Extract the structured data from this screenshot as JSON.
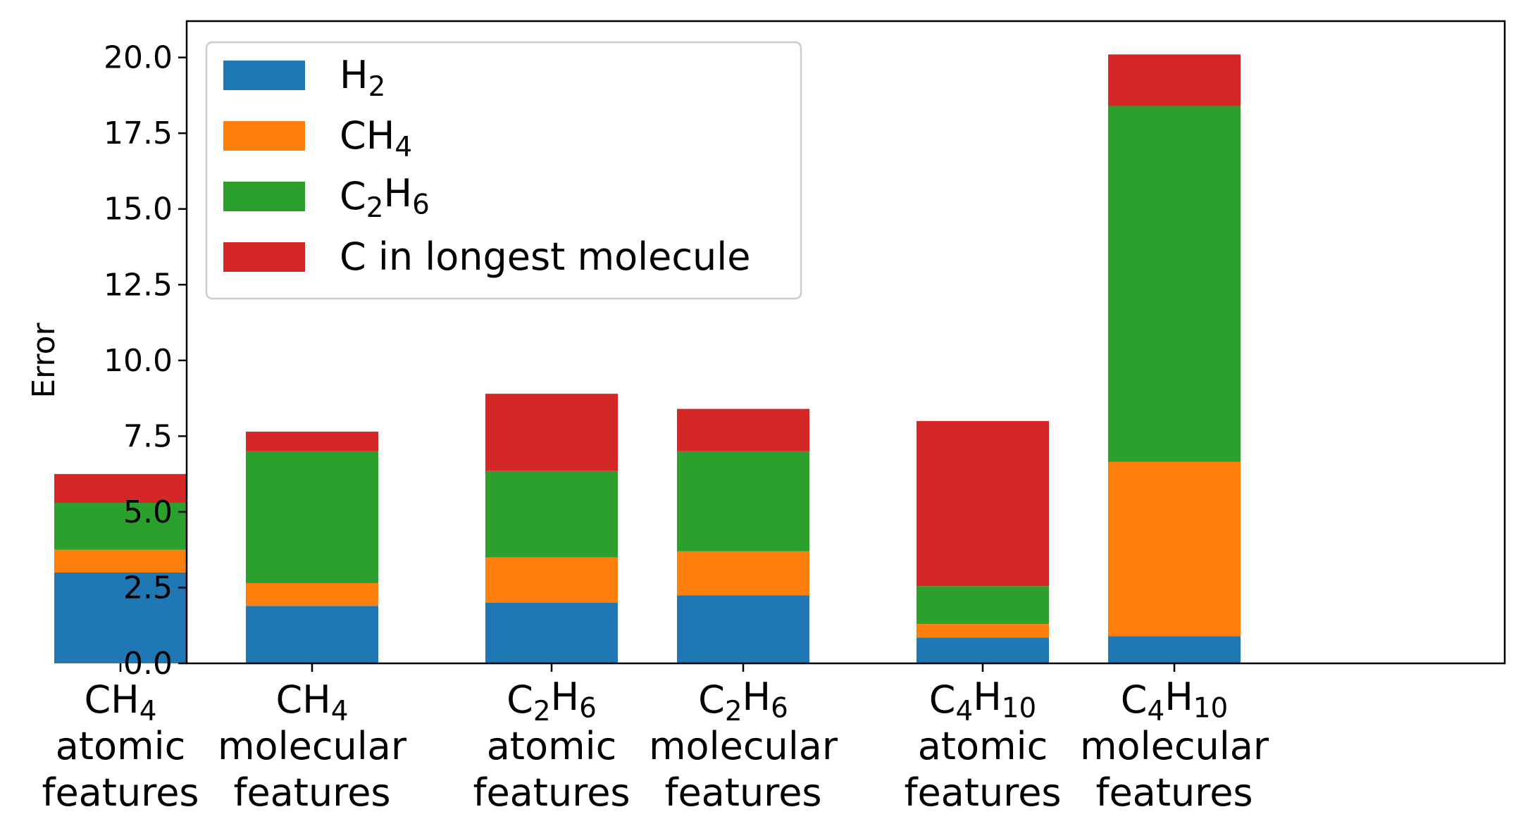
{
  "chart_data": {
    "type": "bar",
    "stacked": true,
    "ylabel": "Error",
    "xlabel": "",
    "title": "",
    "ylim": [
      0,
      21.2
    ],
    "yticks": [
      "0.0",
      "2.5",
      "5.0",
      "7.5",
      "10.0",
      "12.5",
      "15.0",
      "17.5",
      "20.0"
    ],
    "categories": [
      {
        "formula": [
          {
            "t": "CH"
          },
          {
            "t": "4",
            "sub": true
          }
        ],
        "line2": "atomic",
        "line3": "features"
      },
      {
        "formula": [
          {
            "t": "CH"
          },
          {
            "t": "4",
            "sub": true
          }
        ],
        "line2": "molecular",
        "line3": "features"
      },
      {
        "formula": [
          {
            "t": "C"
          },
          {
            "t": "2",
            "sub": true
          },
          {
            "t": "H"
          },
          {
            "t": "6",
            "sub": true
          }
        ],
        "line2": "atomic",
        "line3": "features"
      },
      {
        "formula": [
          {
            "t": "C"
          },
          {
            "t": "2",
            "sub": true
          },
          {
            "t": "H"
          },
          {
            "t": "6",
            "sub": true
          }
        ],
        "line2": "molecular",
        "line3": "features"
      },
      {
        "formula": [
          {
            "t": "C"
          },
          {
            "t": "4",
            "sub": true
          },
          {
            "t": "H"
          },
          {
            "t": "10",
            "sub": true
          }
        ],
        "line2": "atomic",
        "line3": "features"
      },
      {
        "formula": [
          {
            "t": "C"
          },
          {
            "t": "4",
            "sub": true
          },
          {
            "t": "H"
          },
          {
            "t": "10",
            "sub": true
          }
        ],
        "line2": "molecular",
        "line3": "features"
      }
    ],
    "series": [
      {
        "name": [
          {
            "t": "H"
          },
          {
            "t": "2",
            "sub": true
          }
        ],
        "color": "#1f77b4",
        "values": [
          3.0,
          1.9,
          2.0,
          2.25,
          0.85,
          0.9
        ]
      },
      {
        "name": [
          {
            "t": "CH"
          },
          {
            "t": "4",
            "sub": true
          }
        ],
        "color": "#ff7f0e",
        "values": [
          0.75,
          0.75,
          1.5,
          1.45,
          0.45,
          5.75
        ]
      },
      {
        "name": [
          {
            "t": "C"
          },
          {
            "t": "2",
            "sub": true
          },
          {
            "t": "H"
          },
          {
            "t": "6",
            "sub": true
          }
        ],
        "color": "#2ca02c",
        "values": [
          1.55,
          4.35,
          2.85,
          3.3,
          1.25,
          11.75
        ]
      },
      {
        "name": [
          {
            "t": "C in longest molecule"
          }
        ],
        "color": "#d62728",
        "values": [
          0.95,
          0.65,
          2.55,
          1.4,
          5.45,
          1.7
        ]
      }
    ],
    "legend_position": "top-left",
    "grid": false
  }
}
